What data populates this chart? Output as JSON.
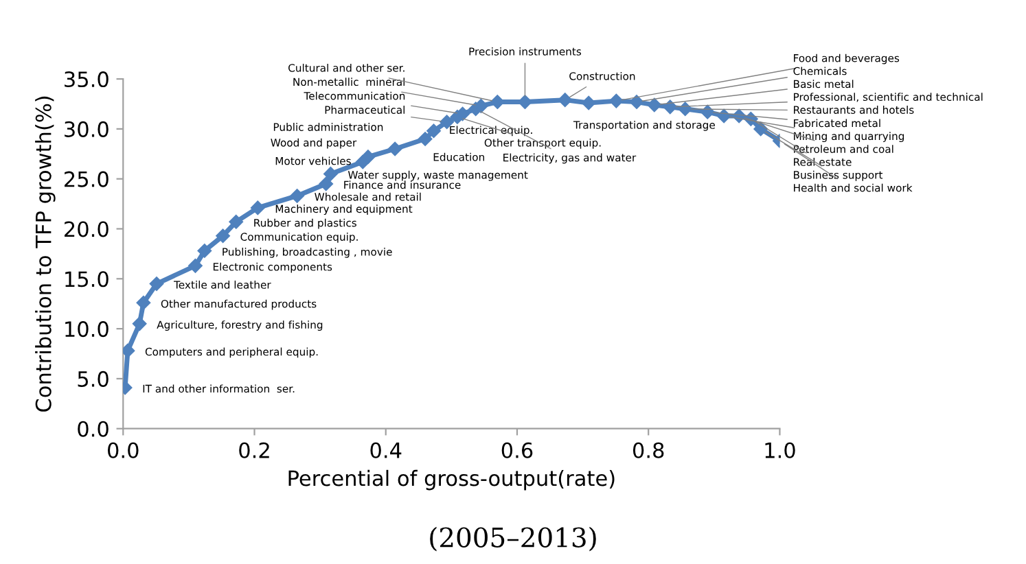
{
  "chart_data": {
    "type": "line",
    "xlabel": "Percential of gross-output(rate)",
    "ylabel": "Contribution to TFP growth(%)",
    "x": [
      0.003,
      0.007,
      0.025,
      0.031,
      0.051,
      0.11,
      0.124,
      0.152,
      0.172,
      0.205,
      0.265,
      0.309,
      0.316,
      0.365,
      0.373,
      0.414,
      0.46,
      0.473,
      0.493,
      0.509,
      0.517,
      0.537,
      0.545,
      0.57,
      0.612,
      0.673,
      0.709,
      0.751,
      0.782,
      0.809,
      0.833,
      0.856,
      0.89,
      0.915,
      0.938,
      0.956,
      0.971,
      1.0
    ],
    "series": [
      {
        "color": "#4f81bd",
        "values": [
          4.1,
          7.8,
          10.5,
          12.6,
          14.5,
          16.3,
          17.8,
          19.3,
          20.7,
          22.1,
          23.3,
          24.5,
          25.5,
          26.7,
          27.2,
          28.0,
          29.0,
          29.8,
          30.7,
          31.2,
          31.5,
          32.0,
          32.3,
          32.7,
          32.7,
          32.9,
          32.6,
          32.8,
          32.7,
          32.4,
          32.2,
          32.0,
          31.7,
          31.3,
          31.3,
          31.0,
          30.0,
          28.8
        ]
      }
    ],
    "marker": "diamond",
    "line_style": "solid",
    "grid": false,
    "xlim": [
      0,
      1.0
    ],
    "xticks": [
      {
        "value": 0,
        "label": "0.0"
      },
      0.2,
      0.4,
      0.6,
      0.8,
      {
        "value": 1.0,
        "label": "1.0"
      }
    ],
    "ylim": [
      0,
      35
    ],
    "yticks": [
      {
        "value": 0,
        "label": "0.0"
      },
      {
        "value": 5,
        "label": "5.0"
      },
      {
        "value": 10,
        "label": "10.0"
      },
      {
        "value": 15,
        "label": "15.0"
      },
      {
        "value": 20,
        "label": "20.0"
      },
      {
        "value": 25,
        "label": "25.0"
      },
      {
        "value": 30,
        "label": "30.0"
      },
      {
        "value": 35,
        "label": "35.0"
      }
    ],
    "annotations": [
      {
        "text": "IT and other information  ser.",
        "x": 0.003,
        "y": 4.1
      },
      {
        "text": "Computers and peripheral equip.",
        "x": 0.007,
        "y": 7.8
      },
      {
        "text": "Agriculture, forestry and fishing",
        "x": 0.025,
        "y": 10.5
      },
      {
        "text": "Other manufactured products",
        "x": 0.031,
        "y": 12.6
      },
      {
        "text": "Textile and leather",
        "x": 0.051,
        "y": 14.5
      },
      {
        "text": "Electronic components",
        "x": 0.11,
        "y": 16.3
      },
      {
        "text": "Publishing, broadcasting , movie",
        "x": 0.124,
        "y": 17.8
      },
      {
        "text": "Communication equip.",
        "x": 0.152,
        "y": 19.3
      },
      {
        "text": "Rubber and plastics",
        "x": 0.172,
        "y": 20.7
      },
      {
        "text": "Machinery and equipment",
        "x": 0.205,
        "y": 22.1
      },
      {
        "text": "Wholesale and retail",
        "x": 0.265,
        "y": 23.3
      },
      {
        "text": "Finance and insurance",
        "x": 0.309,
        "y": 24.5
      },
      {
        "text": "Water supply, waste management",
        "x": 0.316,
        "y": 25.5
      },
      {
        "text": "Motor vehicles",
        "x": 0.365,
        "y": 26.7
      },
      {
        "text": "Wood and paper",
        "x": 0.373,
        "y": 27.2
      },
      {
        "text": "Public administration",
        "x": 0.414,
        "y": 28.0
      },
      {
        "text": "Education",
        "x": 0.46,
        "y": 29.0
      },
      {
        "text": "Electrical equip.",
        "x": 0.473,
        "y": 29.8
      },
      {
        "text": "Pharmaceutical",
        "x": 0.493,
        "y": 30.7
      },
      {
        "text": "Other transport equip.",
        "x": 0.509,
        "y": 31.2
      },
      {
        "text": "Telecommunication",
        "x": 0.517,
        "y": 31.5
      },
      {
        "text": "Electricity, gas and water",
        "x": 0.537,
        "y": 32.0
      },
      {
        "text": "Non-metallic  mineral",
        "x": 0.545,
        "y": 32.3
      },
      {
        "text": "Cultural and other ser.",
        "x": 0.57,
        "y": 32.7
      },
      {
        "text": "Precision instruments",
        "x": 0.612,
        "y": 32.7
      },
      {
        "text": "Construction",
        "x": 0.673,
        "y": 32.9
      },
      {
        "text": "Transportation and storage",
        "x": 0.709,
        "y": 32.6
      },
      {
        "text": "Food and beverages",
        "x": 0.751,
        "y": 32.8
      },
      {
        "text": "Chemicals",
        "x": 0.782,
        "y": 32.7
      },
      {
        "text": "Basic metal",
        "x": 0.809,
        "y": 32.4
      },
      {
        "text": "Professional, scientific and technical",
        "x": 0.833,
        "y": 32.2
      },
      {
        "text": "Restaurants and hotels",
        "x": 0.856,
        "y": 32.0
      },
      {
        "text": "Fabricated metal",
        "x": 0.89,
        "y": 31.7
      },
      {
        "text": "Mining and quarrying",
        "x": 0.915,
        "y": 31.3
      },
      {
        "text": "Petroleum and coal",
        "x": 0.938,
        "y": 31.3
      },
      {
        "text": "Real estate",
        "x": 0.956,
        "y": 31.0
      },
      {
        "text": "Business support",
        "x": 0.971,
        "y": 30.0
      },
      {
        "text": "Health and social work",
        "x": 1.0,
        "y": 28.8
      },
      "(2005–2013)"
    ]
  }
}
